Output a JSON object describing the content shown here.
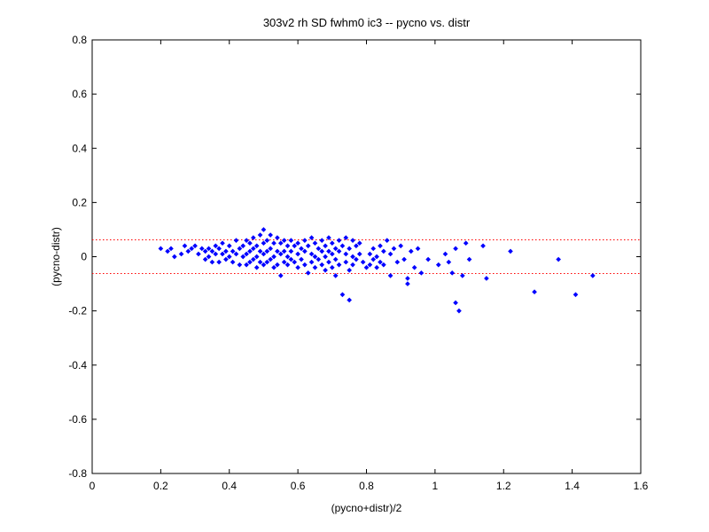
{
  "chart_data": {
    "type": "scatter",
    "title": "303v2 rh SD fwhm0 ic3 -- pycno vs. distr",
    "xlabel": "(pycno+distr)/2",
    "ylabel": "(pycno-distr)",
    "xlim": [
      0,
      1.6
    ],
    "ylim": [
      -0.8,
      0.8
    ],
    "xticks": [
      "0",
      "0.2",
      "0.4",
      "0.6",
      "0.8",
      "1",
      "1.2",
      "1.4",
      "1.6"
    ],
    "yticks": [
      "0.8",
      "0.6",
      "0.4",
      "0.2",
      "0",
      "-0.2",
      "-0.4",
      "-0.6",
      "-0.8"
    ],
    "grid": false,
    "colors": {
      "points": "#0000ff",
      "reference_lines": "#ff0000",
      "axes": "#000000"
    },
    "reference_lines": [
      0.062,
      -0.062
    ],
    "series": [
      {
        "marker": "diamond",
        "points": [
          [
            0.2,
            0.03
          ],
          [
            0.22,
            0.02
          ],
          [
            0.23,
            0.03
          ],
          [
            0.24,
            0.0
          ],
          [
            0.26,
            0.01
          ],
          [
            0.27,
            0.04
          ],
          [
            0.28,
            0.02
          ],
          [
            0.29,
            0.03
          ],
          [
            0.3,
            0.04
          ],
          [
            0.31,
            0.01
          ],
          [
            0.32,
            0.03
          ],
          [
            0.33,
            0.02
          ],
          [
            0.33,
            -0.01
          ],
          [
            0.34,
            0.03
          ],
          [
            0.34,
            0.0
          ],
          [
            0.35,
            0.02
          ],
          [
            0.35,
            -0.02
          ],
          [
            0.36,
            0.04
          ],
          [
            0.36,
            0.01
          ],
          [
            0.37,
            0.03
          ],
          [
            0.37,
            -0.02
          ],
          [
            0.38,
            0.05
          ],
          [
            0.38,
            0.01
          ],
          [
            0.39,
            0.02
          ],
          [
            0.39,
            -0.01
          ],
          [
            0.4,
            0.04
          ],
          [
            0.4,
            0.0
          ],
          [
            0.41,
            0.02
          ],
          [
            0.41,
            -0.02
          ],
          [
            0.42,
            0.06
          ],
          [
            0.42,
            0.01
          ],
          [
            0.43,
            0.03
          ],
          [
            0.43,
            -0.03
          ],
          [
            0.44,
            0.04
          ],
          [
            0.44,
            0.0
          ],
          [
            0.45,
            0.06
          ],
          [
            0.45,
            0.01
          ],
          [
            0.45,
            -0.03
          ],
          [
            0.46,
            0.05
          ],
          [
            0.46,
            0.02
          ],
          [
            0.46,
            -0.02
          ],
          [
            0.47,
            0.07
          ],
          [
            0.47,
            0.03
          ],
          [
            0.47,
            -0.01
          ],
          [
            0.48,
            0.04
          ],
          [
            0.48,
            0.0
          ],
          [
            0.48,
            -0.04
          ],
          [
            0.49,
            0.08
          ],
          [
            0.49,
            0.02
          ],
          [
            0.49,
            -0.02
          ],
          [
            0.5,
            0.1
          ],
          [
            0.5,
            0.05
          ],
          [
            0.5,
            0.01
          ],
          [
            0.5,
            -0.03
          ],
          [
            0.51,
            0.06
          ],
          [
            0.51,
            0.02
          ],
          [
            0.51,
            -0.02
          ],
          [
            0.52,
            0.08
          ],
          [
            0.52,
            0.03
          ],
          [
            0.52,
            -0.01
          ],
          [
            0.53,
            0.05
          ],
          [
            0.53,
            0.0
          ],
          [
            0.53,
            -0.04
          ],
          [
            0.54,
            0.07
          ],
          [
            0.54,
            0.02
          ],
          [
            0.54,
            -0.03
          ],
          [
            0.55,
            0.05
          ],
          [
            0.55,
            0.01
          ],
          [
            0.55,
            -0.07
          ],
          [
            0.56,
            0.06
          ],
          [
            0.56,
            0.02
          ],
          [
            0.56,
            -0.02
          ],
          [
            0.57,
            0.04
          ],
          [
            0.57,
            0.0
          ],
          [
            0.57,
            -0.03
          ],
          [
            0.58,
            0.06
          ],
          [
            0.58,
            0.02
          ],
          [
            0.58,
            -0.01
          ],
          [
            0.59,
            0.04
          ],
          [
            0.59,
            -0.02
          ],
          [
            0.6,
            0.05
          ],
          [
            0.6,
            0.01
          ],
          [
            0.6,
            -0.04
          ],
          [
            0.61,
            0.03
          ],
          [
            0.61,
            -0.01
          ],
          [
            0.62,
            0.06
          ],
          [
            0.62,
            0.02
          ],
          [
            0.62,
            -0.03
          ],
          [
            0.63,
            0.04
          ],
          [
            0.63,
            -0.06
          ],
          [
            0.64,
            0.07
          ],
          [
            0.64,
            0.01
          ],
          [
            0.64,
            -0.02
          ],
          [
            0.65,
            0.05
          ],
          [
            0.65,
            0.0
          ],
          [
            0.65,
            -0.04
          ],
          [
            0.66,
            0.03
          ],
          [
            0.66,
            -0.01
          ],
          [
            0.67,
            0.06
          ],
          [
            0.67,
            0.02
          ],
          [
            0.67,
            -0.03
          ],
          [
            0.68,
            0.04
          ],
          [
            0.68,
            0.0
          ],
          [
            0.68,
            -0.05
          ],
          [
            0.69,
            0.07
          ],
          [
            0.69,
            0.02
          ],
          [
            0.69,
            -0.02
          ],
          [
            0.7,
            0.05
          ],
          [
            0.7,
            0.01
          ],
          [
            0.7,
            -0.04
          ],
          [
            0.71,
            0.03
          ],
          [
            0.71,
            -0.01
          ],
          [
            0.71,
            -0.07
          ],
          [
            0.72,
            0.06
          ],
          [
            0.72,
            0.02
          ],
          [
            0.72,
            -0.03
          ],
          [
            0.73,
            0.04
          ],
          [
            0.73,
            -0.14
          ],
          [
            0.74,
            0.07
          ],
          [
            0.74,
            0.01
          ],
          [
            0.74,
            -0.02
          ],
          [
            0.75,
            0.03
          ],
          [
            0.75,
            -0.05
          ],
          [
            0.75,
            -0.16
          ],
          [
            0.76,
            0.06
          ],
          [
            0.76,
            0.0
          ],
          [
            0.76,
            -0.03
          ],
          [
            0.77,
            0.04
          ],
          [
            0.77,
            -0.01
          ],
          [
            0.78,
            0.05
          ],
          [
            0.78,
            0.01
          ],
          [
            0.79,
            -0.02
          ],
          [
            0.8,
            -0.04
          ],
          [
            0.81,
            0.01
          ],
          [
            0.81,
            -0.03
          ],
          [
            0.82,
            0.03
          ],
          [
            0.82,
            -0.01
          ],
          [
            0.83,
            0.0
          ],
          [
            0.83,
            -0.04
          ],
          [
            0.84,
            0.04
          ],
          [
            0.84,
            -0.02
          ],
          [
            0.85,
            0.02
          ],
          [
            0.85,
            -0.03
          ],
          [
            0.86,
            0.06
          ],
          [
            0.87,
            0.01
          ],
          [
            0.87,
            -0.07
          ],
          [
            0.88,
            0.03
          ],
          [
            0.89,
            -0.02
          ],
          [
            0.9,
            0.04
          ],
          [
            0.91,
            -0.01
          ],
          [
            0.92,
            -0.1
          ],
          [
            0.92,
            -0.08
          ],
          [
            0.93,
            0.02
          ],
          [
            0.94,
            -0.04
          ],
          [
            0.95,
            0.03
          ],
          [
            0.96,
            -0.06
          ],
          [
            0.98,
            -0.01
          ],
          [
            1.01,
            -0.03
          ],
          [
            1.03,
            0.01
          ],
          [
            1.04,
            -0.02
          ],
          [
            1.05,
            -0.06
          ],
          [
            1.06,
            0.03
          ],
          [
            1.06,
            -0.17
          ],
          [
            1.07,
            -0.2
          ],
          [
            1.08,
            -0.07
          ],
          [
            1.09,
            0.05
          ],
          [
            1.1,
            -0.01
          ],
          [
            1.14,
            0.04
          ],
          [
            1.15,
            -0.08
          ],
          [
            1.22,
            0.02
          ],
          [
            1.29,
            -0.13
          ],
          [
            1.36,
            -0.01
          ],
          [
            1.41,
            -0.14
          ],
          [
            1.46,
            -0.07
          ]
        ]
      }
    ]
  }
}
